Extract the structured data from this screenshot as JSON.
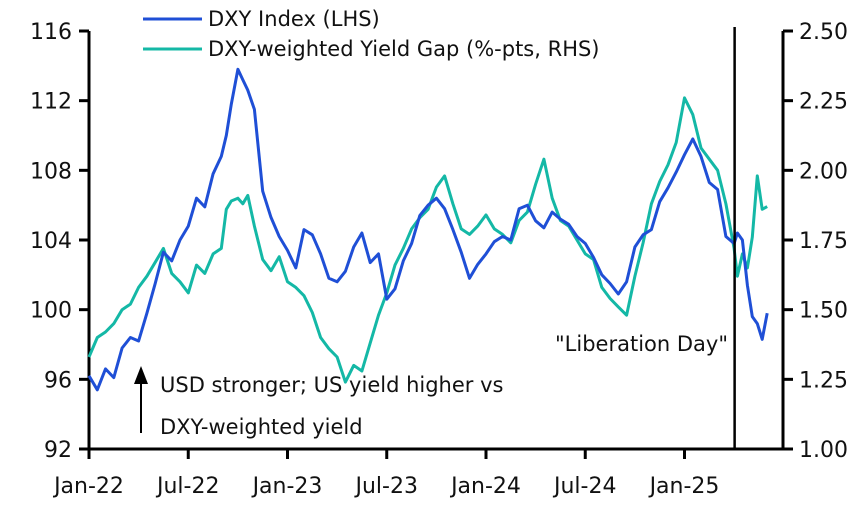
{
  "chart_data": {
    "type": "line",
    "title": "",
    "xlabel": "",
    "ylabel_left": "",
    "ylabel_right": "",
    "x_unit": "months since Jan-2022",
    "x_ticks": [
      {
        "x": 0,
        "label": "Jan-22"
      },
      {
        "x": 6,
        "label": "Jul-22"
      },
      {
        "x": 12,
        "label": "Jan-23"
      },
      {
        "x": 18,
        "label": "Jul-23"
      },
      {
        "x": 24,
        "label": "Jan-24"
      },
      {
        "x": 30,
        "label": "Jul-24"
      },
      {
        "x": 36,
        "label": "Jan-25"
      }
    ],
    "xlim": [
      0,
      41.2
    ],
    "y_left": {
      "ylim": [
        92,
        116
      ],
      "ticks": [
        "92",
        "96",
        "100",
        "104",
        "108",
        "112",
        "116"
      ]
    },
    "y_right": {
      "ylim": [
        1.0,
        2.5
      ],
      "ticks": [
        "1.00",
        "1.25",
        "1.50",
        "1.75",
        "2.00",
        "2.25",
        "2.50"
      ]
    },
    "grid": false,
    "legend_position": "top",
    "series": [
      {
        "name": "DXY Index (LHS)",
        "axis": "left",
        "color": "#1f4fd6",
        "x": [
          0,
          0.5,
          1,
          1.5,
          2,
          2.5,
          3,
          3.5,
          4,
          4.5,
          5,
          5.5,
          6,
          6.5,
          7,
          7.5,
          8,
          8.3,
          8.6,
          9,
          9.3,
          9.6,
          10,
          10.5,
          11,
          11.5,
          12,
          12.5,
          13,
          13.5,
          14,
          14.5,
          15,
          15.5,
          16,
          16.5,
          17,
          17.5,
          18,
          18.5,
          19,
          19.5,
          20,
          20.5,
          21,
          21.5,
          22,
          22.5,
          23,
          23.5,
          24,
          24.5,
          25,
          25.5,
          26,
          26.5,
          27,
          27.5,
          28,
          28.5,
          29,
          29.5,
          30,
          30.5,
          31,
          31.5,
          32,
          32.5,
          33,
          33.5,
          34,
          34.5,
          35,
          35.5,
          36,
          36.5,
          37,
          37.5,
          38,
          38.5,
          39,
          39.2,
          39.5,
          39.8,
          40.1,
          40.4,
          40.7,
          41
        ],
        "values": [
          96.2,
          95.4,
          96.6,
          96.1,
          97.8,
          98.4,
          98.2,
          99.8,
          101.5,
          103.3,
          102.8,
          104.0,
          104.8,
          106.4,
          105.9,
          107.8,
          108.8,
          110.0,
          111.8,
          113.8,
          113.2,
          112.6,
          111.5,
          106.8,
          105.3,
          104.2,
          103.4,
          102.4,
          104.6,
          104.3,
          103.2,
          101.8,
          101.6,
          102.2,
          103.6,
          104.4,
          102.7,
          103.2,
          100.6,
          101.2,
          102.8,
          103.8,
          105.4,
          106.0,
          106.4,
          105.8,
          104.6,
          103.3,
          101.8,
          102.6,
          103.2,
          103.9,
          104.2,
          104.0,
          105.8,
          106.0,
          105.1,
          104.7,
          105.6,
          105.2,
          104.9,
          104.2,
          103.8,
          103.0,
          102.0,
          101.5,
          100.9,
          101.6,
          103.6,
          104.3,
          104.6,
          106.2,
          107.0,
          107.9,
          108.9,
          109.8,
          108.8,
          107.3,
          106.9,
          104.2,
          103.8,
          104.4,
          104.0,
          101.4,
          99.6,
          99.2,
          98.3,
          99.8
        ]
      },
      {
        "name": "DXY-weighted Yield Gap (%-pts, RHS)",
        "axis": "right",
        "color": "#14b8a6",
        "x": [
          0,
          0.5,
          1,
          1.5,
          2,
          2.5,
          3,
          3.5,
          4,
          4.5,
          5,
          5.5,
          6,
          6.5,
          7,
          7.5,
          8,
          8.3,
          8.6,
          9,
          9.3,
          9.6,
          10,
          10.5,
          11,
          11.5,
          12,
          12.5,
          13,
          13.5,
          14,
          14.5,
          15,
          15.5,
          16,
          16.5,
          17,
          17.5,
          18,
          18.5,
          19,
          19.5,
          20,
          20.5,
          21,
          21.5,
          22,
          22.5,
          23,
          23.5,
          24,
          24.5,
          25,
          25.5,
          26,
          26.5,
          27,
          27.5,
          28,
          28.5,
          29,
          29.5,
          30,
          30.5,
          31,
          31.5,
          32,
          32.5,
          33,
          33.5,
          34,
          34.5,
          35,
          35.5,
          36,
          36.5,
          37,
          37.5,
          38,
          38.5,
          39,
          39.2,
          39.5,
          39.8,
          40.1,
          40.4,
          40.7,
          41
        ],
        "values": [
          1.33,
          1.4,
          1.42,
          1.45,
          1.5,
          1.52,
          1.58,
          1.62,
          1.67,
          1.72,
          1.63,
          1.6,
          1.56,
          1.66,
          1.63,
          1.7,
          1.72,
          1.86,
          1.89,
          1.9,
          1.88,
          1.91,
          1.8,
          1.68,
          1.64,
          1.69,
          1.6,
          1.58,
          1.55,
          1.49,
          1.4,
          1.36,
          1.33,
          1.24,
          1.3,
          1.28,
          1.38,
          1.48,
          1.56,
          1.66,
          1.72,
          1.79,
          1.83,
          1.86,
          1.94,
          1.98,
          1.88,
          1.79,
          1.77,
          1.8,
          1.84,
          1.79,
          1.77,
          1.74,
          1.82,
          1.85,
          1.95,
          2.04,
          1.9,
          1.82,
          1.8,
          1.75,
          1.7,
          1.68,
          1.58,
          1.54,
          1.51,
          1.48,
          1.62,
          1.74,
          1.88,
          1.96,
          2.02,
          2.1,
          2.26,
          2.2,
          2.08,
          2.04,
          2.0,
          1.88,
          1.72,
          1.62,
          1.7,
          1.65,
          1.76,
          1.98,
          1.86,
          1.87
        ]
      }
    ],
    "annotations": {
      "event_line_x": 39.03,
      "event_label": "\"Liberation Day\"",
      "arrow_note_line1": "USD stronger;  US yield higher vs",
      "arrow_note_line2": "DXY-weighted yield"
    }
  }
}
